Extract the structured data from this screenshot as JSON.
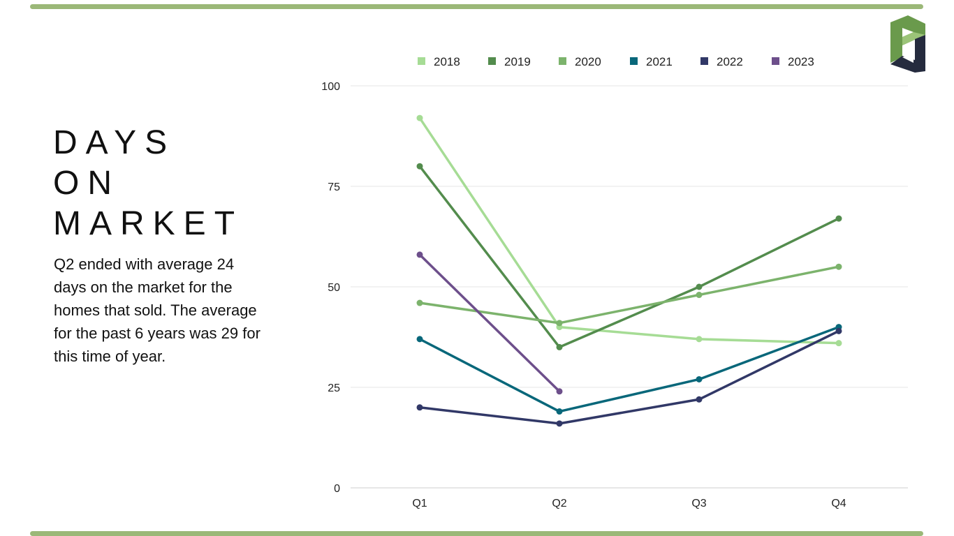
{
  "colors": {
    "accent_bar": "#9bb878"
  },
  "logo": {
    "name": "pd-logo-icon",
    "colors": [
      "#6a9a4c",
      "#9bc478",
      "#252b3e"
    ]
  },
  "title_lines": [
    "DAYS",
    "ON",
    "MARKET"
  ],
  "description": "Q2 ended with average 24 days on the market for the homes that sold.  The average for the past 6 years was 29 for this time of year.",
  "chart_data": {
    "type": "line",
    "categories": [
      "Q1",
      "Q2",
      "Q3",
      "Q4"
    ],
    "ylim": [
      0,
      100
    ],
    "yticks": [
      "0",
      "25",
      "50",
      "75",
      "100"
    ],
    "grid": true,
    "legend_position": "top",
    "series": [
      {
        "name": "2018",
        "color": "#a6dc95",
        "values": [
          92,
          40,
          37,
          36
        ]
      },
      {
        "name": "2019",
        "color": "#538c4d",
        "values": [
          80,
          35,
          50,
          67
        ]
      },
      {
        "name": "2020",
        "color": "#7cb36c",
        "values": [
          46,
          41,
          48,
          55
        ]
      },
      {
        "name": "2021",
        "color": "#08677a",
        "values": [
          37,
          19,
          27,
          40
        ]
      },
      {
        "name": "2022",
        "color": "#313867",
        "values": [
          20,
          16,
          22,
          39
        ]
      },
      {
        "name": "2023",
        "color": "#6d4f8b",
        "values": [
          58,
          24,
          null,
          null
        ]
      }
    ]
  }
}
